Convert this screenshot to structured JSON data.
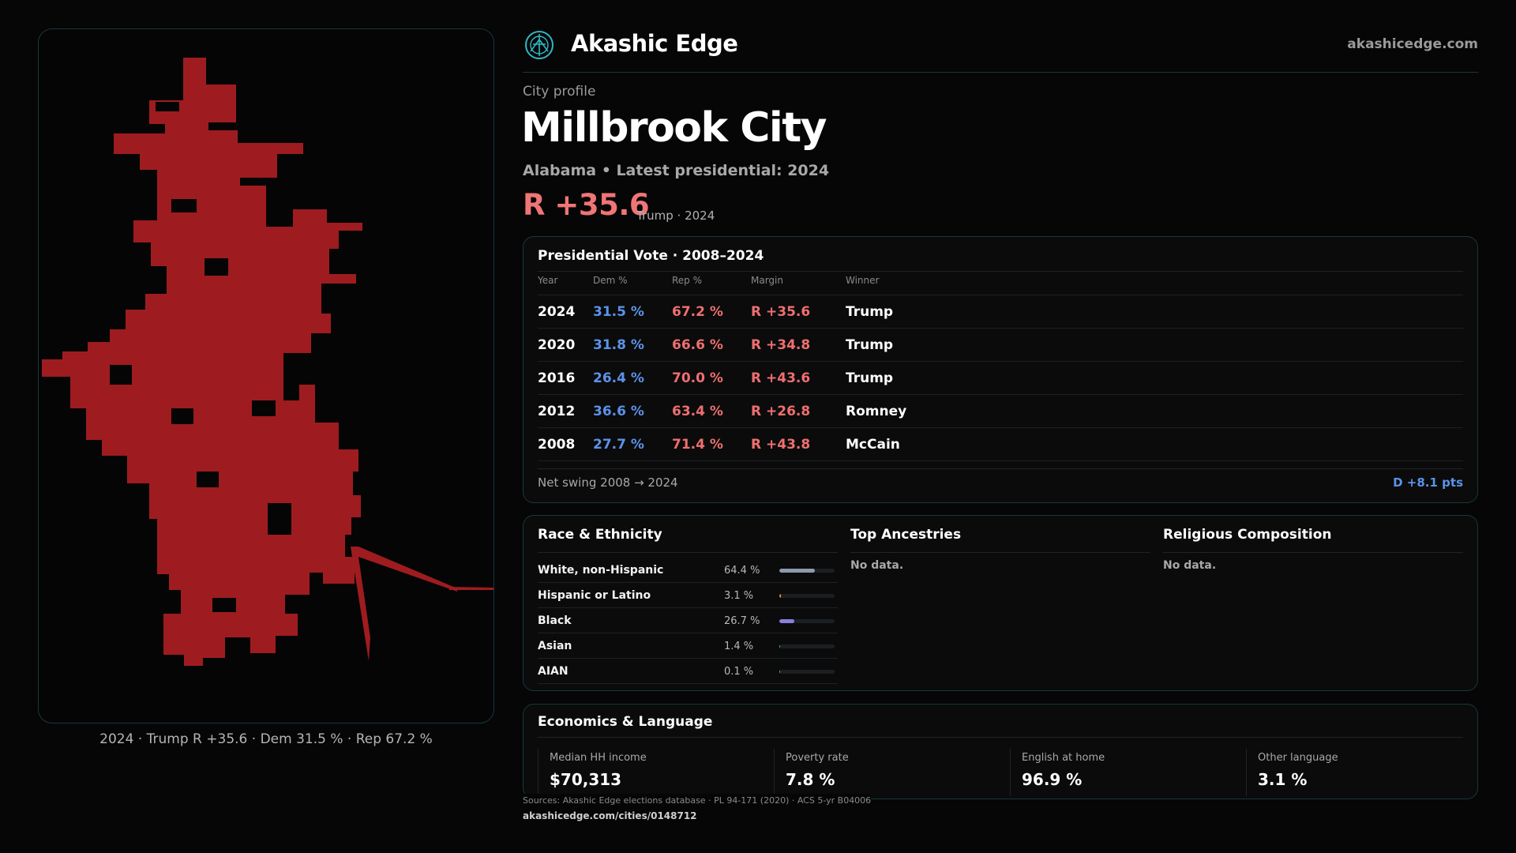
{
  "brand": {
    "name": "Akashic Edge",
    "url": "akashicedge.com",
    "icon": "akashic-logo-icon"
  },
  "profile": {
    "eyebrow": "City profile",
    "title": "Millbrook City",
    "subtitle": "Alabama • Latest presidential: 2024",
    "margin": "R +35.6",
    "margin_note": "Trump · 2024"
  },
  "map": {
    "caption": "2024 · Trump R +35.6 · Dem 31.5 % · Rep 67.2 %",
    "fill_color": "#9e1c1f"
  },
  "vote": {
    "title": "Presidential Vote · 2008–2024",
    "headers": {
      "year": "Year",
      "dem": "Dem %",
      "rep": "Rep %",
      "margin": "Margin",
      "winner": "Winner"
    },
    "rows": [
      {
        "year": "2024",
        "dem": "31.5 %",
        "rep": "67.2 %",
        "margin": "R +35.6",
        "winner": "Trump"
      },
      {
        "year": "2020",
        "dem": "31.8 %",
        "rep": "66.6 %",
        "margin": "R +34.8",
        "winner": "Trump"
      },
      {
        "year": "2016",
        "dem": "26.4 %",
        "rep": "70.0 %",
        "margin": "R +43.6",
        "winner": "Trump"
      },
      {
        "year": "2012",
        "dem": "36.6 %",
        "rep": "63.4 %",
        "margin": "R +26.8",
        "winner": "Romney"
      },
      {
        "year": "2008",
        "dem": "27.7 %",
        "rep": "71.4 %",
        "margin": "R +43.8",
        "winner": "McCain"
      }
    ],
    "swing_label": "Net swing 2008 → 2024",
    "swing_value": "D +8.1 pts"
  },
  "race": {
    "title": "Race & Ethnicity",
    "rows": [
      {
        "name": "White, non-Hispanic",
        "pct": "64.4 %",
        "share": 0.644,
        "color": "#8d9aae"
      },
      {
        "name": "Hispanic or Latino",
        "pct": "3.1 %",
        "share": 0.031,
        "color": "#e0902f"
      },
      {
        "name": "Black",
        "pct": "26.7 %",
        "share": 0.267,
        "color": "#8b7fe0"
      },
      {
        "name": "Asian",
        "pct": "1.4 %",
        "share": 0.014,
        "color": "#3fb3a4"
      },
      {
        "name": "AIAN",
        "pct": "0.1 %",
        "share": 0.001,
        "color": "#3fb3a4"
      }
    ]
  },
  "ancestries": {
    "title": "Top Ancestries",
    "empty": "No data."
  },
  "religion": {
    "title": "Religious Composition",
    "empty": "No data."
  },
  "economics": {
    "title": "Economics & Language",
    "stats": [
      {
        "label": "Median HH income",
        "value": "$70,313"
      },
      {
        "label": "Poverty rate",
        "value": "7.8 %"
      },
      {
        "label": "English at home",
        "value": "96.9 %"
      },
      {
        "label": "Other language",
        "value": "3.1 %"
      }
    ]
  },
  "footer": {
    "sources": "Sources: Akashic Edge elections database · PL 94-171 (2020) · ACS 5-yr B04006",
    "url": "akashicedge.com/cities/0148712"
  }
}
